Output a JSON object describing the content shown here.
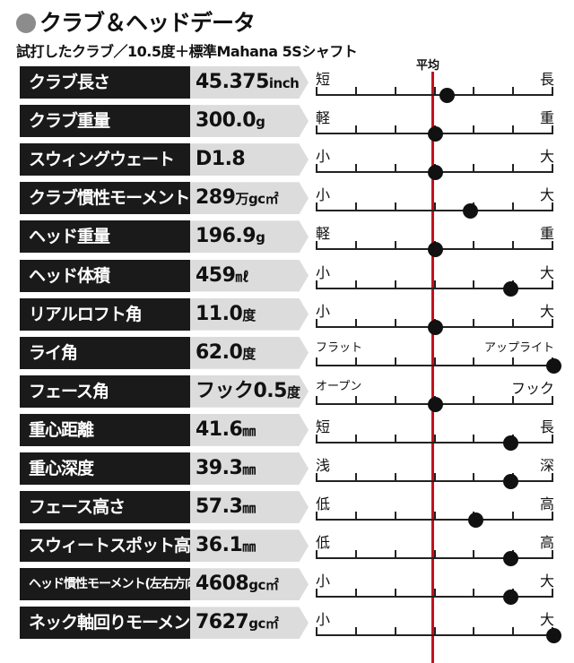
{
  "header": {
    "title": "クラブ＆ヘッドデータ",
    "subtitle": "試打したクラブ／10.5度＋標準Mahana 5Sシャフト"
  },
  "average_label": "平均",
  "accent_color": "#c1121f",
  "rows": [
    {
      "label": "クラブ長さ",
      "value": "45.375",
      "unit": "inch",
      "left": "短",
      "right": "長",
      "level": 0.55
    },
    {
      "label": "クラブ重量",
      "value": "300.0",
      "unit": "g",
      "left": "軽",
      "right": "重",
      "level": 0.5
    },
    {
      "label": "スウィングウェート",
      "value": "D1.8",
      "unit": "",
      "left": "小",
      "right": "大",
      "level": 0.5
    },
    {
      "label": "クラブ慣性モーメント",
      "value": "289",
      "unit": "万gc㎡",
      "left": "小",
      "right": "大",
      "level": 0.65
    },
    {
      "label": "ヘッド重量",
      "value": "196.9",
      "unit": "g",
      "left": "軽",
      "right": "重",
      "level": 0.5
    },
    {
      "label": "ヘッド体積",
      "value": "459",
      "unit": "㎖",
      "left": "小",
      "right": "大",
      "level": 0.82
    },
    {
      "label": "リアルロフト角",
      "value": "11.0",
      "unit": "度",
      "left": "小",
      "right": "大",
      "level": 0.5
    },
    {
      "label": "ライ角",
      "value": "62.0",
      "unit": "度",
      "left": "フラット",
      "right": "アップライト",
      "level": 1.0
    },
    {
      "label": "フェース角",
      "value": "フック0.5",
      "unit": "度",
      "left": "オープン",
      "right": "フック",
      "level": 0.5
    },
    {
      "label": "重心距離",
      "value": "41.6",
      "unit": "㎜",
      "left": "短",
      "right": "長",
      "level": 0.82
    },
    {
      "label": "重心深度",
      "value": "39.3",
      "unit": "㎜",
      "left": "浅",
      "right": "深",
      "level": 0.82
    },
    {
      "label": "フェース高さ",
      "value": "57.3",
      "unit": "㎜",
      "left": "低",
      "right": "高",
      "level": 0.67
    },
    {
      "label": "スウィートスポット高さ",
      "value": "36.1",
      "unit": "㎜",
      "left": "低",
      "right": "高",
      "level": 0.82
    },
    {
      "label": "ヘッド慣性モーメント(左右方向)",
      "value": "4608",
      "unit": "gc㎡",
      "left": "小",
      "right": "大",
      "level": 0.82
    },
    {
      "label": "ネック軸回りモーメント",
      "value": "7627",
      "unit": "gc㎡",
      "left": "小",
      "right": "大",
      "level": 1.0
    }
  ]
}
